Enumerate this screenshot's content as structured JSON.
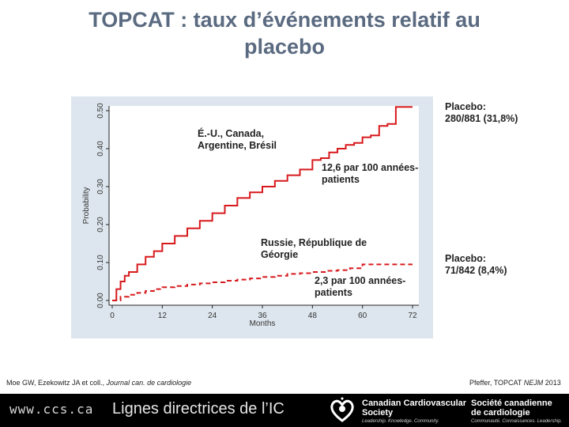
{
  "slide": {
    "title_line1": "TOPCAT : taux d’événements relatif au",
    "title_line2": "placebo"
  },
  "annotations": {
    "us_region": [
      "É.-U., Canada,",
      "Argentine, Brésil"
    ],
    "us_rate": [
      "12,6 par 100 années-",
      "patients"
    ],
    "us_placebo": [
      "Placebo:",
      "280/881 (31,8%)"
    ],
    "ru_region": [
      "Russie, République de",
      "Géorgie"
    ],
    "ru_rate": [
      "2,3 par 100 années-",
      "patients"
    ],
    "ru_placebo": [
      "Placebo:",
      "71/842 (8,4%)"
    ]
  },
  "citation_left": {
    "pre": "Moe GW, Ezekowitz JA et coll., ",
    "journal": "Journal can. de cardiologie"
  },
  "citation_right": {
    "pre": "Pfeffer, TOPCAT ",
    "journal": "NEJM",
    "post": " 2013"
  },
  "footer": {
    "url": "www.ccs.ca",
    "guidelines": "Lignes directrices de l’IC",
    "org_en_line1": "Canadian Cardiovascular",
    "org_en_line2": "Society",
    "org_en_tag": "Leadership. Knowledge. Community.",
    "org_fr_line1": "Société canadienne",
    "org_fr_line2": "de cardiologie",
    "org_fr_tag": "Communauté. Connaissances. Leadership."
  },
  "colors": {
    "title": "#5a6a80",
    "series": "#d7191c",
    "plot_background": "#dde6ee"
  },
  "chart_data": {
    "type": "line",
    "xlabel": "Months",
    "ylabel": "Probability",
    "xlim": [
      0,
      72
    ],
    "ylim": [
      0,
      0.5
    ],
    "x_ticks": [
      0,
      12,
      24,
      36,
      48,
      60,
      72
    ],
    "y_ticks": [
      0,
      0.1,
      0.2,
      0.3,
      0.4,
      0.5
    ],
    "y_tick_labels": [
      "0.00",
      "0.10",
      "0.20",
      "0.30",
      "0.40",
      "0.50"
    ],
    "series": [
      {
        "style": "solid",
        "color": "#d7191c",
        "x": [
          0,
          1,
          2,
          3,
          4,
          6,
          8,
          10,
          12,
          15,
          18,
          21,
          24,
          27,
          30,
          33,
          36,
          39,
          42,
          45,
          48,
          50,
          52,
          54,
          56,
          58,
          60,
          62,
          64,
          66,
          68,
          70,
          72
        ],
        "y": [
          0,
          0.03,
          0.05,
          0.065,
          0.075,
          0.095,
          0.115,
          0.13,
          0.15,
          0.17,
          0.19,
          0.21,
          0.23,
          0.25,
          0.27,
          0.285,
          0.3,
          0.315,
          0.33,
          0.345,
          0.37,
          0.375,
          0.39,
          0.4,
          0.41,
          0.415,
          0.43,
          0.435,
          0.46,
          0.465,
          0.51,
          0.51,
          0.51
        ]
      },
      {
        "style": "dashed",
        "color": "#d7191c",
        "x": [
          0,
          2,
          4,
          6,
          8,
          10,
          12,
          15,
          18,
          21,
          24,
          27,
          30,
          33,
          36,
          39,
          42,
          45,
          48,
          51,
          54,
          57,
          60,
          63,
          66,
          69,
          72
        ],
        "y": [
          0,
          0.01,
          0.015,
          0.02,
          0.025,
          0.03,
          0.035,
          0.038,
          0.042,
          0.045,
          0.048,
          0.052,
          0.055,
          0.058,
          0.062,
          0.065,
          0.07,
          0.072,
          0.075,
          0.078,
          0.08,
          0.085,
          0.095,
          0.095,
          0.095,
          0.095,
          0.095
        ]
      }
    ]
  }
}
